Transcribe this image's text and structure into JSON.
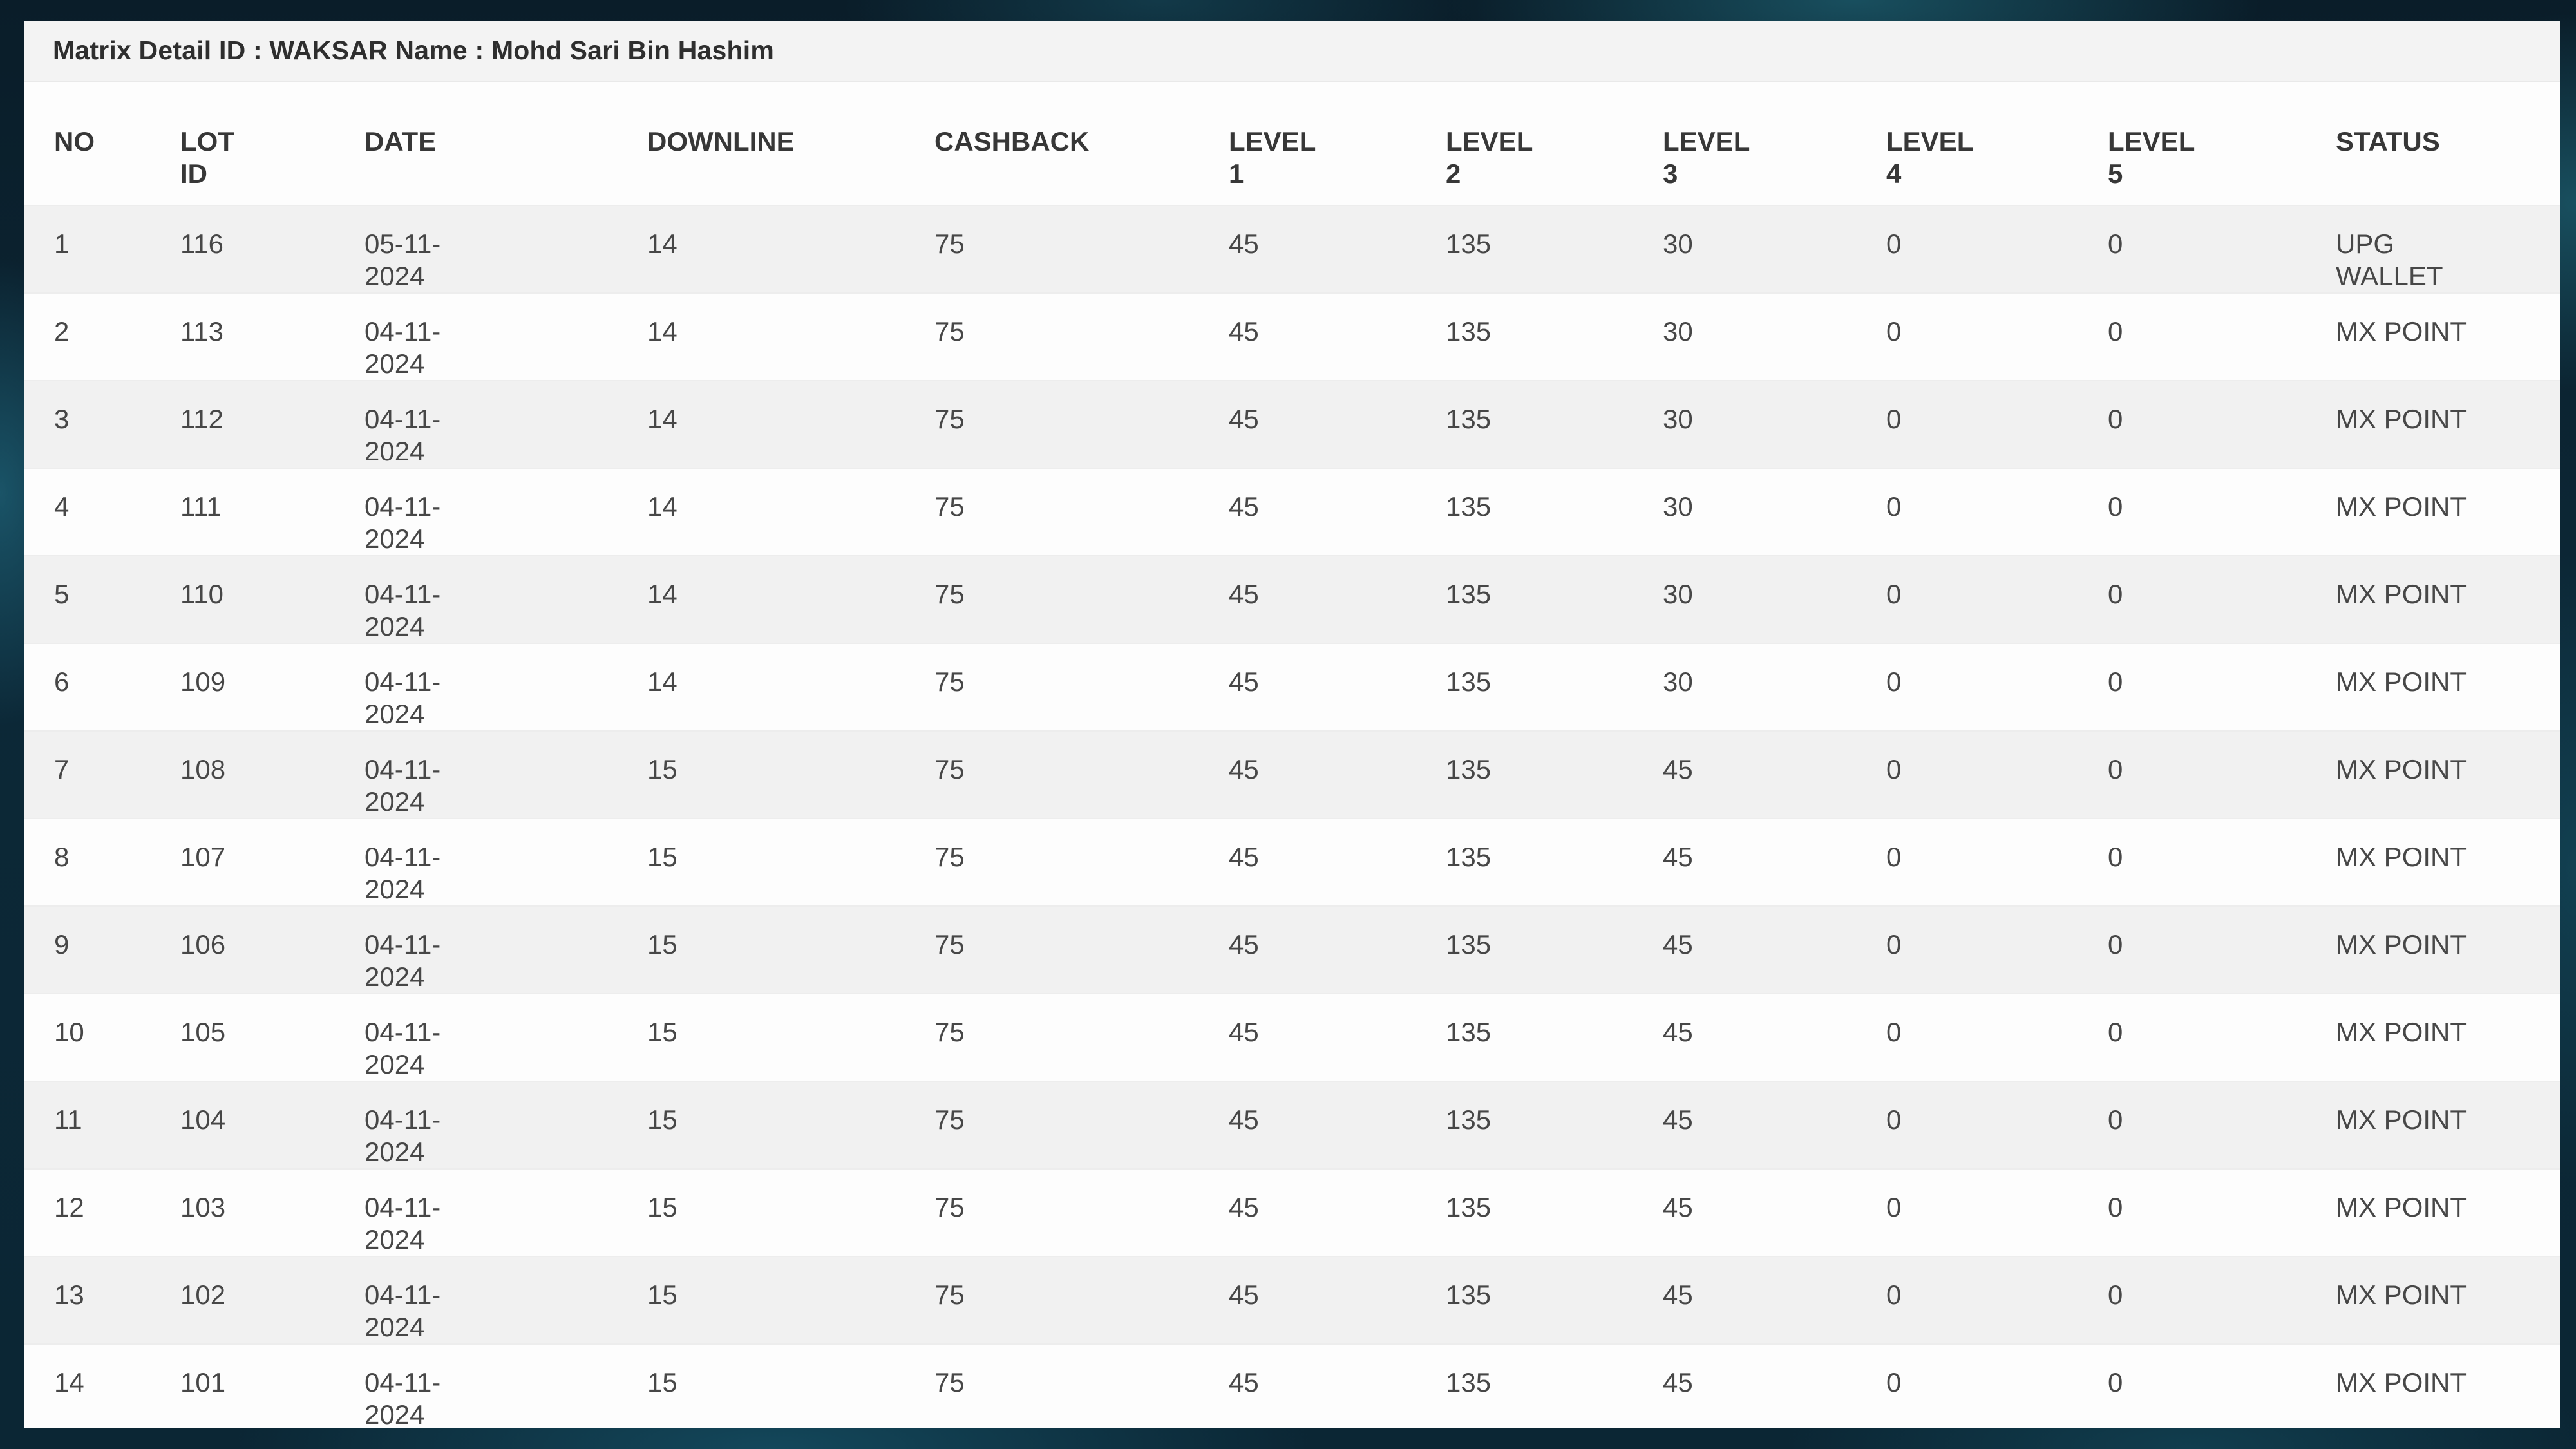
{
  "panel": {
    "title": "Matrix Detail ID : WAKSAR Name : Mohd Sari Bin Hashim"
  },
  "table": {
    "columns": [
      {
        "key": "no",
        "label": "NO"
      },
      {
        "key": "lot_id",
        "label": "LOT ID"
      },
      {
        "key": "date",
        "label": "DATE"
      },
      {
        "key": "downline",
        "label": "DOWNLINE"
      },
      {
        "key": "cashback",
        "label": "CASHBACK"
      },
      {
        "key": "level1",
        "label": "LEVEL 1"
      },
      {
        "key": "level2",
        "label": "LEVEL 2"
      },
      {
        "key": "level3",
        "label": "LEVEL 3"
      },
      {
        "key": "level4",
        "label": "LEVEL 4"
      },
      {
        "key": "level5",
        "label": "LEVEL 5"
      },
      {
        "key": "status",
        "label": "STATUS"
      }
    ],
    "rows": [
      {
        "no": "1",
        "lot_id": "116",
        "date": "05-11-2024",
        "downline": "14",
        "cashback": "75",
        "level1": "45",
        "level2": "135",
        "level3": "30",
        "level4": "0",
        "level5": "0",
        "status": "UPG WALLET"
      },
      {
        "no": "2",
        "lot_id": "113",
        "date": "04-11-2024",
        "downline": "14",
        "cashback": "75",
        "level1": "45",
        "level2": "135",
        "level3": "30",
        "level4": "0",
        "level5": "0",
        "status": "MX POINT"
      },
      {
        "no": "3",
        "lot_id": "112",
        "date": "04-11-2024",
        "downline": "14",
        "cashback": "75",
        "level1": "45",
        "level2": "135",
        "level3": "30",
        "level4": "0",
        "level5": "0",
        "status": "MX POINT"
      },
      {
        "no": "4",
        "lot_id": "111",
        "date": "04-11-2024",
        "downline": "14",
        "cashback": "75",
        "level1": "45",
        "level2": "135",
        "level3": "30",
        "level4": "0",
        "level5": "0",
        "status": "MX POINT"
      },
      {
        "no": "5",
        "lot_id": "110",
        "date": "04-11-2024",
        "downline": "14",
        "cashback": "75",
        "level1": "45",
        "level2": "135",
        "level3": "30",
        "level4": "0",
        "level5": "0",
        "status": "MX POINT"
      },
      {
        "no": "6",
        "lot_id": "109",
        "date": "04-11-2024",
        "downline": "14",
        "cashback": "75",
        "level1": "45",
        "level2": "135",
        "level3": "30",
        "level4": "0",
        "level5": "0",
        "status": "MX POINT"
      },
      {
        "no": "7",
        "lot_id": "108",
        "date": "04-11-2024",
        "downline": "15",
        "cashback": "75",
        "level1": "45",
        "level2": "135",
        "level3": "45",
        "level4": "0",
        "level5": "0",
        "status": "MX POINT"
      },
      {
        "no": "8",
        "lot_id": "107",
        "date": "04-11-2024",
        "downline": "15",
        "cashback": "75",
        "level1": "45",
        "level2": "135",
        "level3": "45",
        "level4": "0",
        "level5": "0",
        "status": "MX POINT"
      },
      {
        "no": "9",
        "lot_id": "106",
        "date": "04-11-2024",
        "downline": "15",
        "cashback": "75",
        "level1": "45",
        "level2": "135",
        "level3": "45",
        "level4": "0",
        "level5": "0",
        "status": "MX POINT"
      },
      {
        "no": "10",
        "lot_id": "105",
        "date": "04-11-2024",
        "downline": "15",
        "cashback": "75",
        "level1": "45",
        "level2": "135",
        "level3": "45",
        "level4": "0",
        "level5": "0",
        "status": "MX POINT"
      },
      {
        "no": "11",
        "lot_id": "104",
        "date": "04-11-2024",
        "downline": "15",
        "cashback": "75",
        "level1": "45",
        "level2": "135",
        "level3": "45",
        "level4": "0",
        "level5": "0",
        "status": "MX POINT"
      },
      {
        "no": "12",
        "lot_id": "103",
        "date": "04-11-2024",
        "downline": "15",
        "cashback": "75",
        "level1": "45",
        "level2": "135",
        "level3": "45",
        "level4": "0",
        "level5": "0",
        "status": "MX POINT"
      },
      {
        "no": "13",
        "lot_id": "102",
        "date": "04-11-2024",
        "downline": "15",
        "cashback": "75",
        "level1": "45",
        "level2": "135",
        "level3": "45",
        "level4": "0",
        "level5": "0",
        "status": "MX POINT"
      },
      {
        "no": "14",
        "lot_id": "101",
        "date": "04-11-2024",
        "downline": "15",
        "cashback": "75",
        "level1": "45",
        "level2": "135",
        "level3": "45",
        "level4": "0",
        "level5": "0",
        "status": "MX POINT"
      }
    ]
  },
  "colors": {
    "page_background": "#0b2433",
    "background_streak_teal": "#2a8ca0",
    "panel_background": "#fdfdfd",
    "title_bar_background": "#f3f3f3",
    "row_stripe": "#f1f1f1",
    "row_divider": "#ededed",
    "text": "#474747",
    "header_text": "#373737",
    "title_text": "#2e2e2e"
  }
}
